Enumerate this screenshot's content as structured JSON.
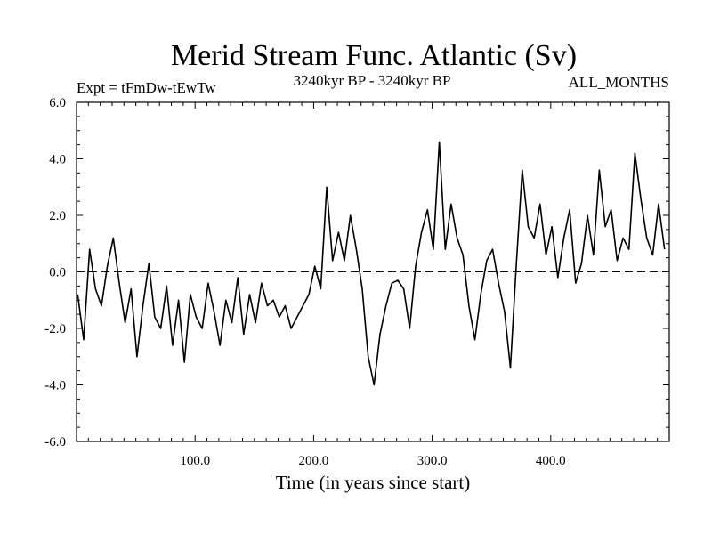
{
  "chart_data": {
    "type": "line",
    "title": "Merid Stream Func. Atlantic (Sv)",
    "subtitle_left": "Expt = tFmDw-tEwTw",
    "subtitle_center": "3240kyr BP - 3240kyr BP",
    "subtitle_right": "ALL_MONTHS",
    "xlabel": "Time (in years since start)",
    "ylabel": "",
    "xlim": [
      0,
      500
    ],
    "ylim": [
      -6,
      6
    ],
    "x_ticks": [
      100,
      200,
      300,
      400
    ],
    "x_tick_labels": [
      "100.0",
      "200.0",
      "300.0",
      "400.0"
    ],
    "y_ticks": [
      -6,
      -4,
      -2,
      0,
      2,
      4,
      6
    ],
    "y_tick_labels": [
      "-6.0",
      "-4.0",
      "-2.0",
      "0.0",
      "2.0",
      "4.0",
      "6.0"
    ],
    "reference_line": {
      "y": 0,
      "style": "dashed"
    },
    "line_color": "#000000",
    "series": [
      {
        "name": "Merid Stream Func. Atlantic",
        "x_start": 1,
        "x_step": 5,
        "values": [
          -0.8,
          -2.4,
          0.8,
          -0.6,
          -1.2,
          0.2,
          1.2,
          -0.4,
          -1.8,
          -0.6,
          -3.0,
          -1.2,
          0.3,
          -1.6,
          -2.0,
          -0.5,
          -2.6,
          -1.0,
          -3.2,
          -0.8,
          -1.6,
          -2.0,
          -0.4,
          -1.4,
          -2.6,
          -1.0,
          -1.8,
          -0.2,
          -2.2,
          -0.8,
          -1.8,
          -0.4,
          -1.2,
          -1.0,
          -1.6,
          -1.2,
          -2.0,
          -1.6,
          -1.2,
          -0.8,
          0.2,
          -0.6,
          3.0,
          0.4,
          1.4,
          0.4,
          2.0,
          0.8,
          -0.6,
          -3.0,
          -4.0,
          -2.2,
          -1.2,
          -0.4,
          -0.3,
          -0.6,
          -2.0,
          0.2,
          1.4,
          2.2,
          0.8,
          4.6,
          0.8,
          2.4,
          1.2,
          0.6,
          -1.2,
          -2.4,
          -0.8,
          0.4,
          0.8,
          -0.4,
          -1.4,
          -3.4,
          0.3,
          3.6,
          1.6,
          1.2,
          2.4,
          0.6,
          1.6,
          -0.2,
          1.2,
          2.2,
          -0.4,
          0.3,
          2.0,
          0.6,
          3.6,
          1.6,
          2.2,
          0.4,
          1.2,
          0.8,
          4.2,
          2.6,
          1.2,
          0.6,
          2.4,
          0.8
        ]
      }
    ]
  }
}
